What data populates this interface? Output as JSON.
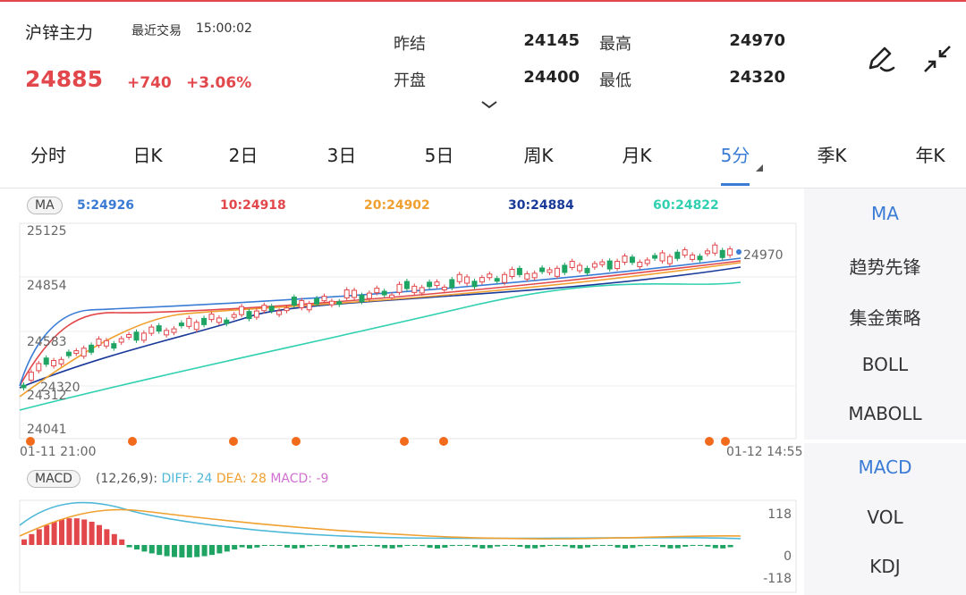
{
  "header": {
    "title": "沪锌主力",
    "recent_label": "最近交易",
    "time": "15:00:02",
    "price": "24885",
    "change": "+740",
    "change_pct": "+3.06%",
    "stats": [
      {
        "label": "昨结",
        "value": "24145"
      },
      {
        "label": "最高",
        "value": "24970"
      },
      {
        "label": "开盘",
        "value": "24400"
      },
      {
        "label": "最低",
        "value": "24320"
      }
    ],
    "icons": [
      "chevron-down-icon",
      "pen-draw-icon",
      "collapse-icon"
    ],
    "up_color": "#e2474b"
  },
  "tabs": [
    {
      "label": "分时",
      "active": false
    },
    {
      "label": "日K",
      "active": false
    },
    {
      "label": "2日",
      "active": false
    },
    {
      "label": "3日",
      "active": false
    },
    {
      "label": "5日",
      "active": false
    },
    {
      "label": "周K",
      "active": false
    },
    {
      "label": "月K",
      "active": false
    },
    {
      "label": "5分",
      "active": true
    },
    {
      "label": "季K",
      "active": false
    },
    {
      "label": "年K",
      "active": false
    }
  ],
  "ma_legend": {
    "tag": "MA",
    "items": [
      {
        "text": "5:24926",
        "color": "#3a7bd5"
      },
      {
        "text": "10:24918",
        "color": "#e2474b"
      },
      {
        "text": "20:24902",
        "color": "#f0a030"
      },
      {
        "text": "30:24884",
        "color": "#1a3a9a"
      },
      {
        "text": "60:24822",
        "color": "#30d0b0"
      }
    ]
  },
  "price_axis": {
    "ticks": [
      "25125",
      "24854",
      "24583",
      "24312",
      "24041"
    ],
    "high_label": "24970",
    "low_label": "24320",
    "time_start": "01-11 21:00",
    "time_end": "01-12 14:55"
  },
  "macd_legend": {
    "tag": "MACD",
    "params": "(12,26,9):",
    "diff": "DIFF: 24",
    "dea": "DEA: 28",
    "macd": "MACD: -9",
    "diff_color": "#4fb8d8",
    "dea_color": "#f0a030",
    "macd_color": "#d070d0"
  },
  "macd_axis": {
    "top": "118",
    "mid": "0",
    "bottom": "-118"
  },
  "panel_main": [
    {
      "label": "MA",
      "active": true
    },
    {
      "label": "趋势先锋",
      "active": false
    },
    {
      "label": "集金策略",
      "active": false
    },
    {
      "label": "BOLL",
      "active": false
    },
    {
      "label": "MABOLL",
      "active": false
    }
  ],
  "panel_sub": [
    {
      "label": "MACD",
      "active": true
    },
    {
      "label": "VOL",
      "active": false
    },
    {
      "label": "KDJ",
      "active": false
    }
  ]
}
